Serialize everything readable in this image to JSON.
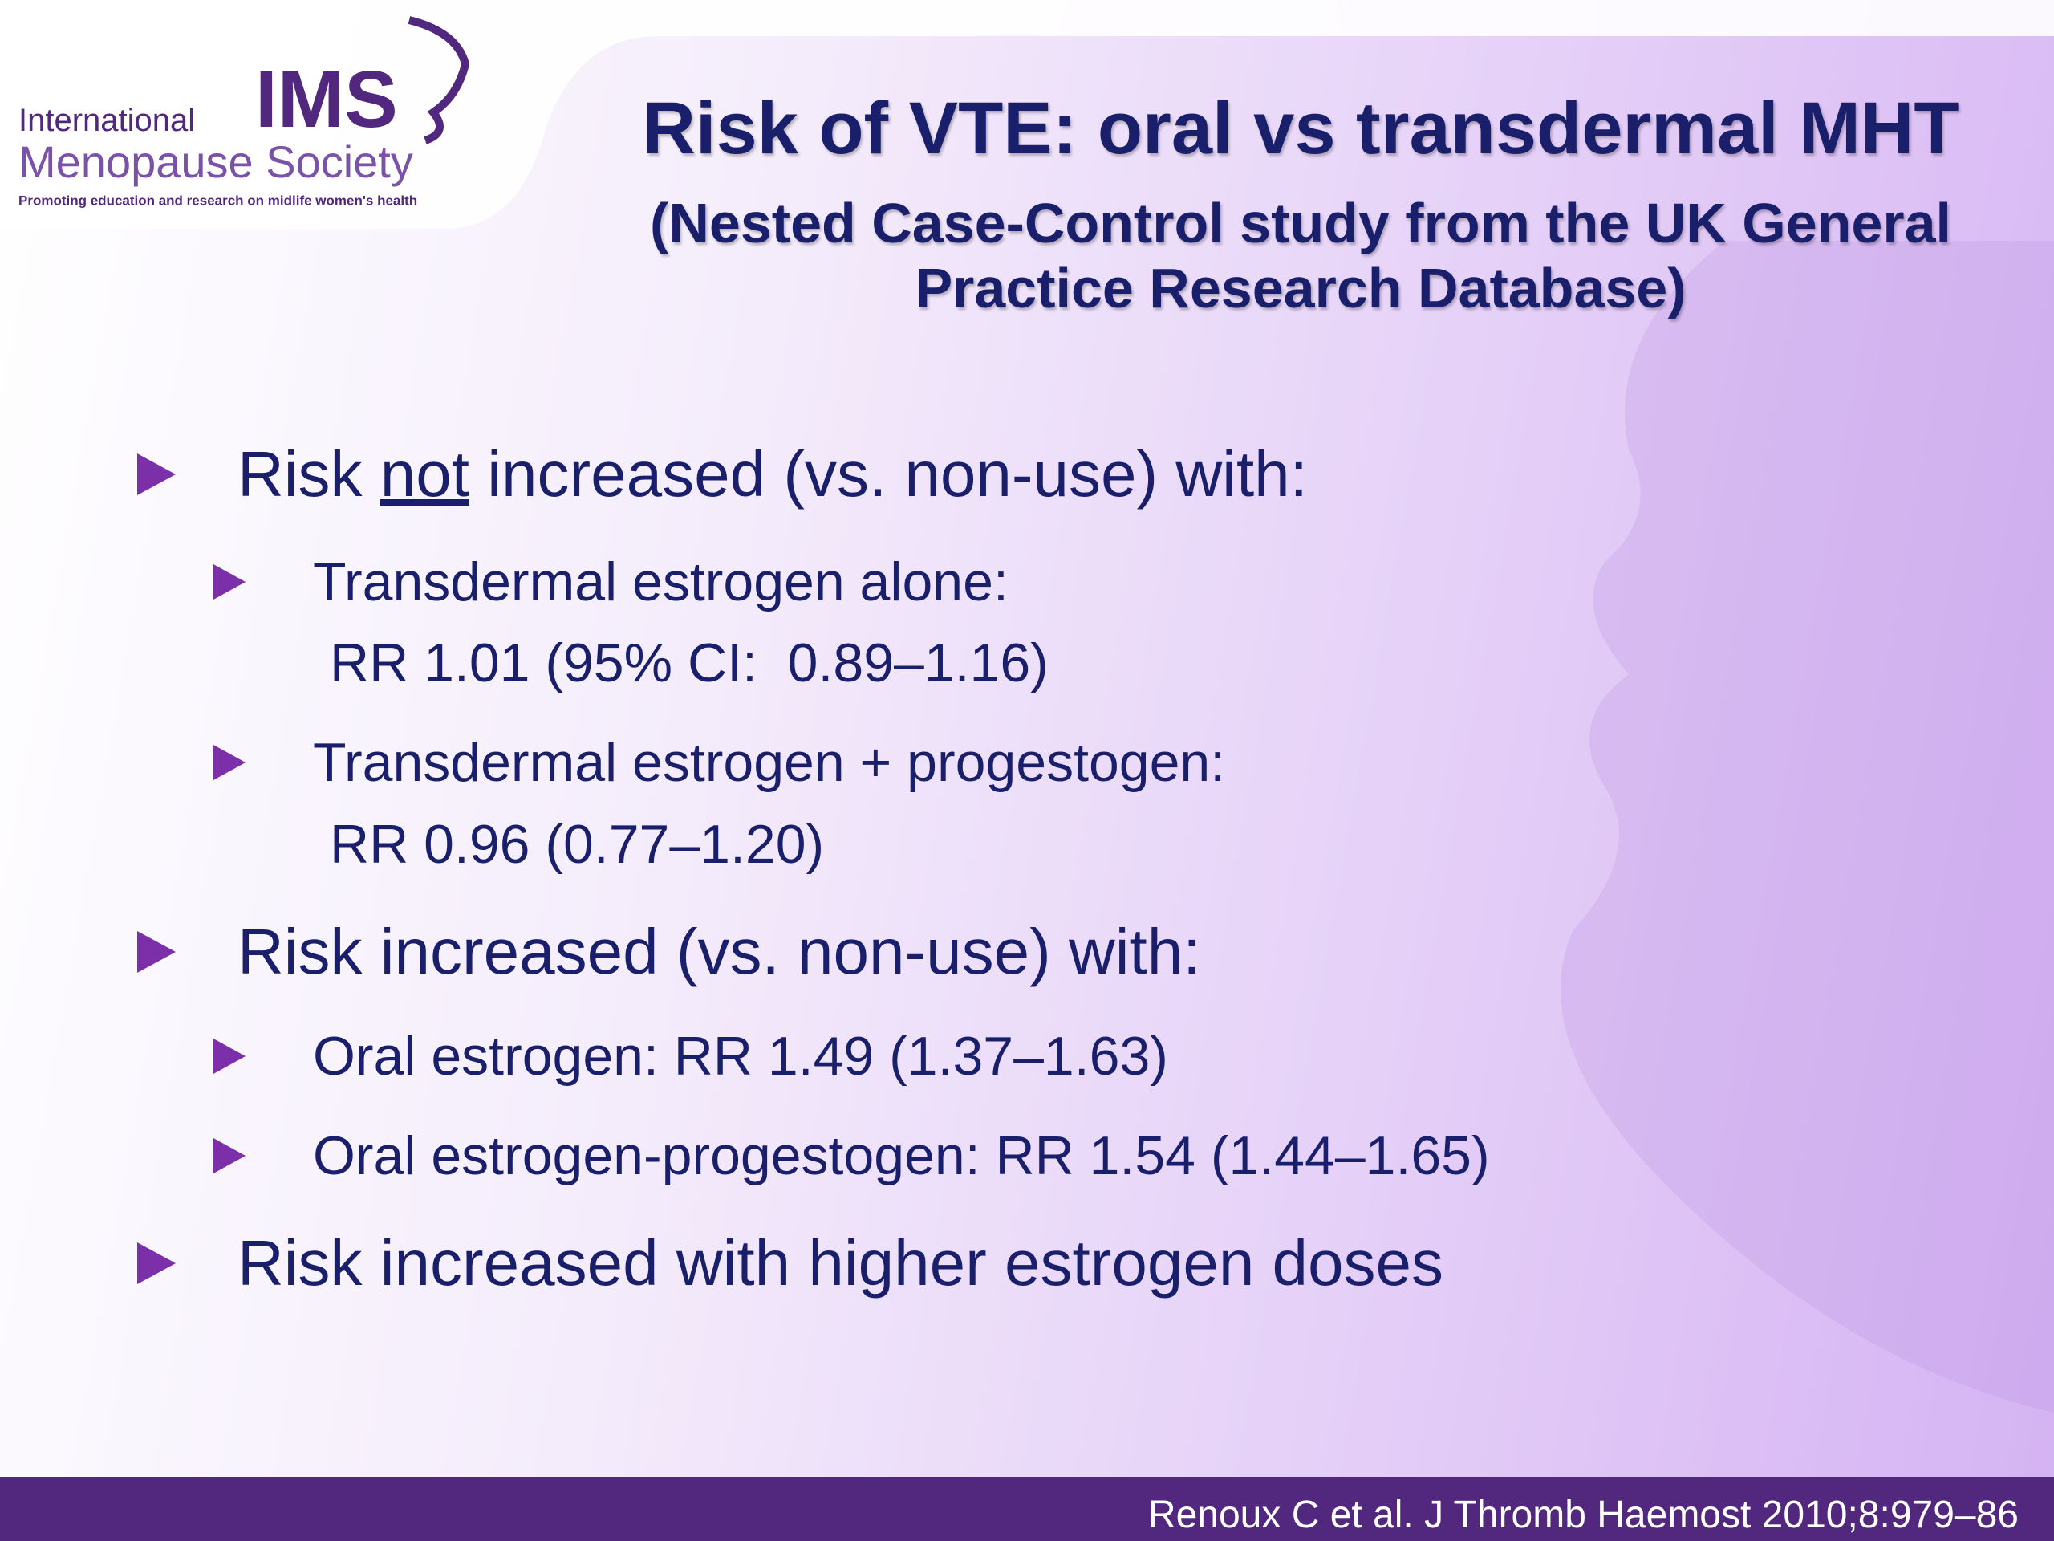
{
  "logo": {
    "acronym": "IMS",
    "name_line1": "International",
    "name_line2": "Menopause Society",
    "tagline": "Promoting education and research on midlife women's health"
  },
  "title": "Risk of VTE: oral vs transdermal MHT",
  "subtitle": [
    "(Nested Case-Control study from the UK General",
    "Practice Research Database)"
  ],
  "bullets": [
    {
      "parts": [
        "Risk ",
        "not",
        " increased (vs. non-use) with:"
      ],
      "sub": [
        {
          "lines": [
            "Transdermal estrogen alone:",
            "RR 1.01 (95% CI:  0.89–1.16)"
          ]
        },
        {
          "lines": [
            "Transdermal estrogen + progestogen:",
            "RR 0.96 (0.77–1.20)"
          ]
        }
      ]
    },
    {
      "parts": [
        "Risk increased (vs. non-use) with:"
      ],
      "sub": [
        {
          "lines": [
            "Oral estrogen: RR 1.49 (1.37–1.63)"
          ]
        },
        {
          "lines": [
            "Oral estrogen-progestogen: RR 1.54 (1.44–1.65)"
          ]
        }
      ]
    },
    {
      "parts": [
        "Risk increased with higher estrogen doses"
      ],
      "sub": []
    }
  ],
  "footer": "Renoux C et al. J Thromb Haemost 2010;8:979–86"
}
